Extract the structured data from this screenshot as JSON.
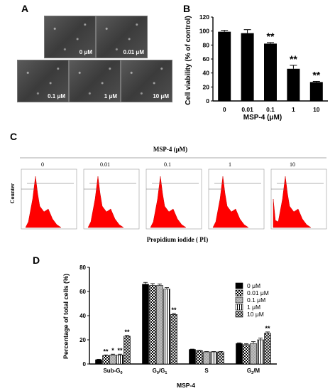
{
  "panel_labels": {
    "a": "A",
    "b": "B",
    "c": "C",
    "d": "D"
  },
  "panel_a": {
    "images": [
      {
        "label": "0 μM"
      },
      {
        "label": "0.01 μM"
      },
      {
        "label": "0.1 μM"
      },
      {
        "label": "1 μM"
      },
      {
        "label": "10 μM"
      }
    ]
  },
  "panel_c": {
    "header": "MSP-4 (μM)",
    "y_label": "Counter",
    "x_label": "Propidium iodide ( PI)",
    "histograms": [
      {
        "label": "0"
      },
      {
        "label": "0.01"
      },
      {
        "label": "0.1"
      },
      {
        "label": "1"
      },
      {
        "label": "10"
      }
    ]
  },
  "chart_data": [
    {
      "type": "bar",
      "panel": "B",
      "categories": [
        "0",
        "0.01",
        "0.1",
        "1",
        "10"
      ],
      "values": [
        99,
        97,
        82,
        46,
        27
      ],
      "errors": [
        2,
        5,
        1.5,
        5,
        1
      ],
      "significance": [
        "",
        "",
        "**",
        "**",
        "**"
      ],
      "xlabel": "MSP-4 (μM)",
      "ylabel": "Cell viability (% of control)",
      "ylim": [
        0,
        120
      ],
      "yticks": [
        0,
        20,
        40,
        60,
        80,
        100,
        120
      ],
      "bar_color": "#000000"
    },
    {
      "type": "bar",
      "panel": "D",
      "categories": [
        "Sub-G0",
        "G0/G1",
        "S",
        "G2/M"
      ],
      "series": [
        {
          "name": "0 μM",
          "values": [
            3.5,
            66,
            12,
            17
          ],
          "errors": [
            0.4,
            1.5,
            0.3,
            0.5
          ],
          "significance": [
            "",
            "",
            "",
            ""
          ]
        },
        {
          "name": "0.01 μM",
          "values": [
            7,
            65,
            11,
            16
          ],
          "errors": [
            0.5,
            1.5,
            0.3,
            0.8
          ],
          "significance": [
            "**",
            "",
            "",
            ""
          ]
        },
        {
          "name": "0.1 μM",
          "values": [
            7.5,
            65,
            10,
            17
          ],
          "errors": [
            0.6,
            1.2,
            0.3,
            1.5
          ],
          "significance": [
            "*",
            "",
            "",
            ""
          ]
        },
        {
          "name": "1 μM",
          "values": [
            7.5,
            62,
            10,
            20
          ],
          "errors": [
            0.6,
            1.2,
            0.3,
            1.5
          ],
          "significance": [
            "**",
            "",
            "",
            ""
          ]
        },
        {
          "name": "10 μM",
          "values": [
            23,
            41,
            10,
            25.5
          ],
          "errors": [
            0.6,
            0.8,
            0.3,
            1
          ],
          "significance": [
            "**",
            "**",
            "",
            "**"
          ]
        }
      ],
      "xlabel": "MSP-4",
      "ylabel": "Percentage of total cells (%)",
      "ylim": [
        0,
        80
      ],
      "yticks": [
        0,
        20,
        40,
        60,
        80
      ],
      "legend_position": "right"
    }
  ]
}
